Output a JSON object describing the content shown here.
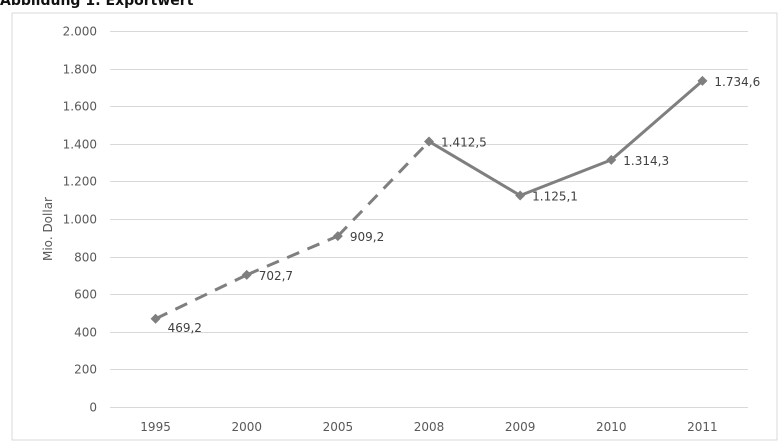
{
  "title": "Abbildung 1: Exportwert",
  "chart_data": {
    "type": "line",
    "categories": [
      "1995",
      "2000",
      "2005",
      "2008",
      "2009",
      "2010",
      "2011"
    ],
    "values": [
      469.2,
      702.7,
      909.2,
      1412.5,
      1125.1,
      1314.3,
      1734.6
    ],
    "value_labels": [
      "469,2",
      "702,7",
      "909,2",
      "1.412,5",
      "1.125,1",
      "1.314,3",
      "1.734,6"
    ],
    "dashed_segments_until_index": 3,
    "ylabel": "Mio. Dollar",
    "xlabel": "",
    "ylim": [
      0,
      2000
    ],
    "yticks": [
      0,
      200,
      400,
      600,
      800,
      1000,
      1200,
      1400,
      1600,
      1800,
      2000
    ],
    "ytick_labels": [
      "0",
      "200",
      "400",
      "600",
      "800",
      "1.000",
      "1.200",
      "1.400",
      "1.600",
      "1.800",
      "2.000"
    ],
    "grid": true,
    "legend": "none",
    "line_color": "#7f7f7f",
    "grid_color": "#d9d9d9"
  }
}
